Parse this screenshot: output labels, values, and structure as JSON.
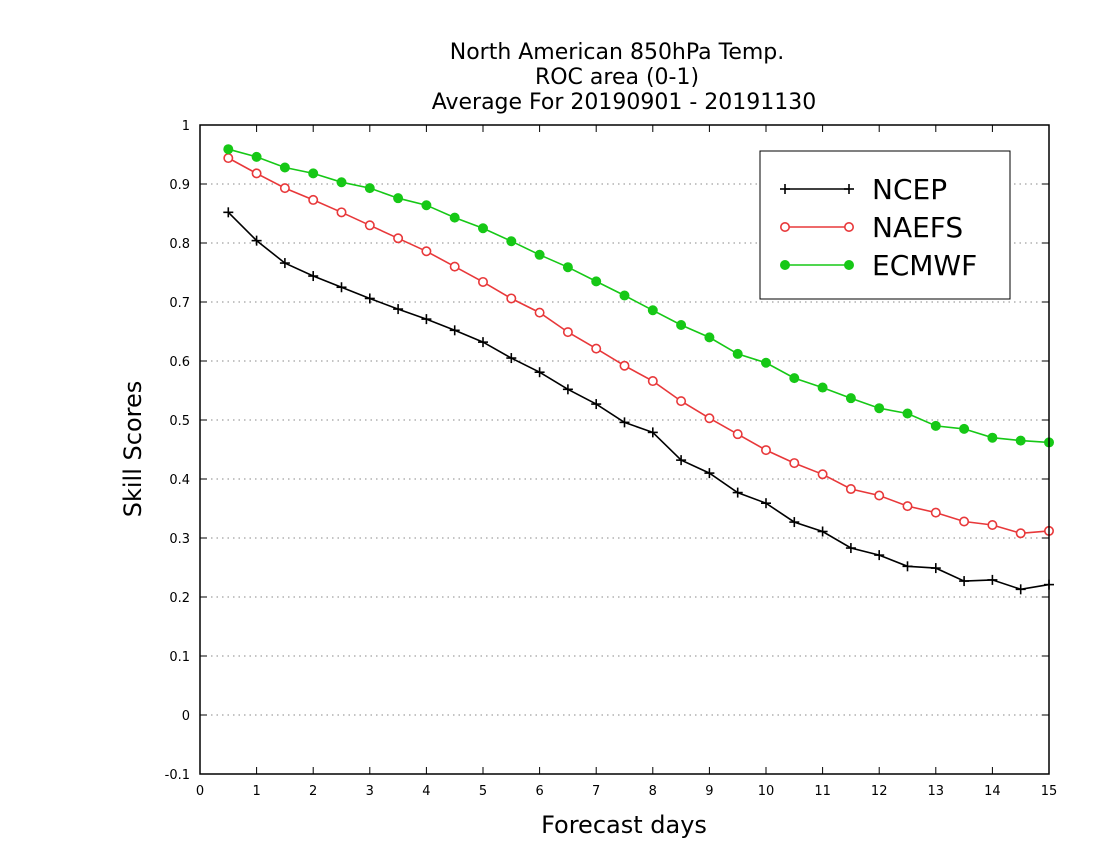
{
  "chart_data": {
    "type": "line",
    "title": [
      "North American 850hPa Temp.",
      "ROC area (0-1)",
      "Average For 20190901 - 20191130"
    ],
    "xlabel": "Forecast days",
    "ylabel": "Skill Scores",
    "xlim": [
      0,
      15
    ],
    "ylim": [
      -0.1,
      1
    ],
    "xticks": [
      0,
      1,
      2,
      3,
      4,
      5,
      6,
      7,
      8,
      9,
      10,
      11,
      12,
      13,
      14,
      15
    ],
    "xtick_labels": [
      "0",
      "1",
      "2",
      "3",
      "4",
      "5",
      "6",
      "7",
      "8",
      "9",
      "10",
      "11",
      "12",
      "13",
      "14",
      "15"
    ],
    "yticks": [
      -0.1,
      0,
      0.1,
      0.2,
      0.3,
      0.4,
      0.5,
      0.6,
      0.7,
      0.8,
      0.9,
      1
    ],
    "ytick_labels": [
      "-0.1",
      "0",
      "0.1",
      "0.2",
      "0.3",
      "0.4",
      "0.5",
      "0.6",
      "0.7",
      "0.8",
      "0.9",
      "1"
    ],
    "grid": "horizontal-dotted",
    "legend_position": "top-right",
    "x": [
      0.5,
      1,
      1.5,
      2,
      2.5,
      3,
      3.5,
      4,
      4.5,
      5,
      5.5,
      6,
      6.5,
      7,
      7.5,
      8,
      8.5,
      9,
      9.5,
      10,
      10.5,
      11,
      11.5,
      12,
      12.5,
      13,
      13.5,
      14,
      14.5,
      15
    ],
    "series": [
      {
        "name": "NCEP",
        "color": "#000000",
        "marker": "plus",
        "values": [
          0.852,
          0.804,
          0.766,
          0.744,
          0.725,
          0.706,
          0.688,
          0.671,
          0.652,
          0.632,
          0.605,
          0.581,
          0.552,
          0.527,
          0.496,
          0.479,
          0.432,
          0.41,
          0.377,
          0.359,
          0.327,
          0.311,
          0.283,
          0.271,
          0.252,
          0.249,
          0.227,
          0.229,
          0.213,
          0.221
        ]
      },
      {
        "name": "NAEFS",
        "color": "#e8383a",
        "marker": "open-circle",
        "values": [
          0.944,
          0.918,
          0.893,
          0.873,
          0.852,
          0.83,
          0.808,
          0.786,
          0.76,
          0.734,
          0.706,
          0.682,
          0.649,
          0.621,
          0.592,
          0.566,
          0.532,
          0.503,
          0.476,
          0.449,
          0.427,
          0.408,
          0.383,
          0.372,
          0.354,
          0.343,
          0.328,
          0.322,
          0.308,
          0.312
        ]
      },
      {
        "name": "ECMWF",
        "color": "#16c816",
        "marker": "filled-circle",
        "values": [
          0.959,
          0.946,
          0.928,
          0.918,
          0.903,
          0.893,
          0.876,
          0.864,
          0.843,
          0.825,
          0.803,
          0.78,
          0.759,
          0.735,
          0.711,
          0.686,
          0.661,
          0.64,
          0.612,
          0.597,
          0.571,
          0.555,
          0.537,
          0.52,
          0.511,
          0.49,
          0.485,
          0.47,
          0.465,
          0.462
        ]
      }
    ]
  }
}
